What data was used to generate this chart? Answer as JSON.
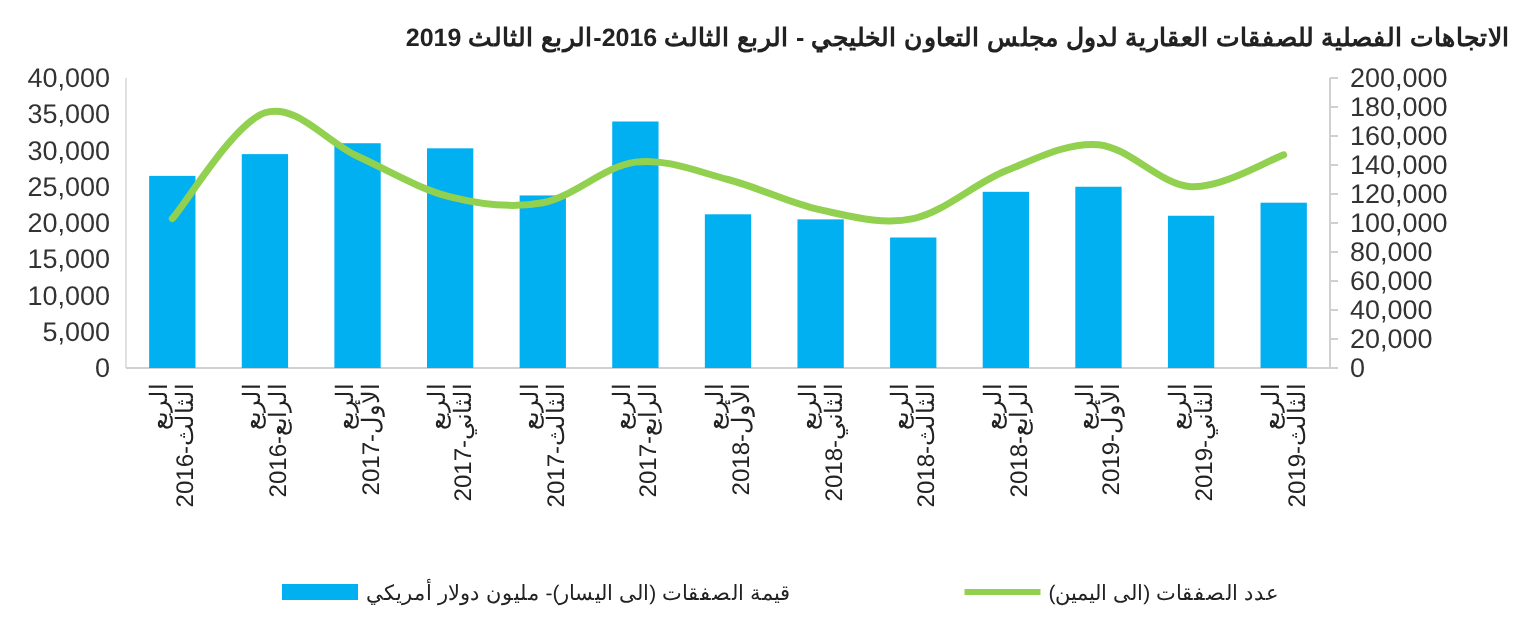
{
  "chart_data": {
    "type": "bar",
    "title": "الاتجاهات الفصلية للصفقات العقارية لدول مجلس التعاون الخليجي - الربع الثالث 2016-الربع الثالث 2019",
    "categories": [
      "الربع الثالث-2016",
      "الربع الرابع-2016",
      "الربع الأول-2017",
      "الربع الثاني-2017",
      "الربع الثالث-2017",
      "الربع الرابع-2017",
      "الربع الأول-2018",
      "الربع الثاني-2018",
      "الربع الثالث-2018",
      "الربع الرابع-2018",
      "الربع الأول-2019",
      "الربع الثاني-2019",
      "الربع الثالث-2019"
    ],
    "series": [
      {
        "name": "قيمة الصفقات (الى اليسار)- مليون دولار أمريكي",
        "color": "#00b0f0",
        "values": [
          26500,
          29500,
          31000,
          30300,
          23800,
          34000,
          21200,
          20500,
          18000,
          24300,
          25000,
          21000,
          22800
        ]
      },
      {
        "name": "عدد الصفقات (الى اليمين)",
        "type": "line",
        "axis": "y2",
        "color": "#92d050",
        "values": [
          103000,
          176000,
          146000,
          118000,
          114000,
          142000,
          130000,
          109000,
          103000,
          136000,
          154000,
          125000,
          147000
        ]
      }
    ],
    "ylim": [
      0,
      40000
    ],
    "yticks": [
      0,
      {
        "value": 5000,
        "label": "5,000"
      },
      {
        "value": 10000,
        "label": "10,000"
      },
      {
        "value": 15000,
        "label": "15,000"
      },
      {
        "value": 20000,
        "label": "20,000"
      },
      {
        "value": 25000,
        "label": "25,000"
      },
      {
        "value": 30000,
        "label": "30,000"
      },
      {
        "value": 35000,
        "label": "35,000"
      },
      {
        "value": 40000,
        "label": "40,000"
      }
    ],
    "y2lim": [
      0,
      200000
    ],
    "y2ticks": [
      0,
      {
        "value": 20000,
        "label": "20,000"
      },
      {
        "value": 40000,
        "label": "40,000"
      },
      {
        "value": 60000,
        "label": "60,000"
      },
      {
        "value": 80000,
        "label": "80,000"
      },
      {
        "value": 100000,
        "label": "100,000"
      },
      {
        "value": 120000,
        "label": "120,000"
      },
      {
        "value": 140000,
        "label": "140,000"
      },
      {
        "value": 160000,
        "label": "160,000"
      },
      {
        "value": 180000,
        "label": "180,000"
      },
      {
        "value": 200000,
        "label": "200,000"
      }
    ],
    "legend": "bottom",
    "grid": false
  }
}
